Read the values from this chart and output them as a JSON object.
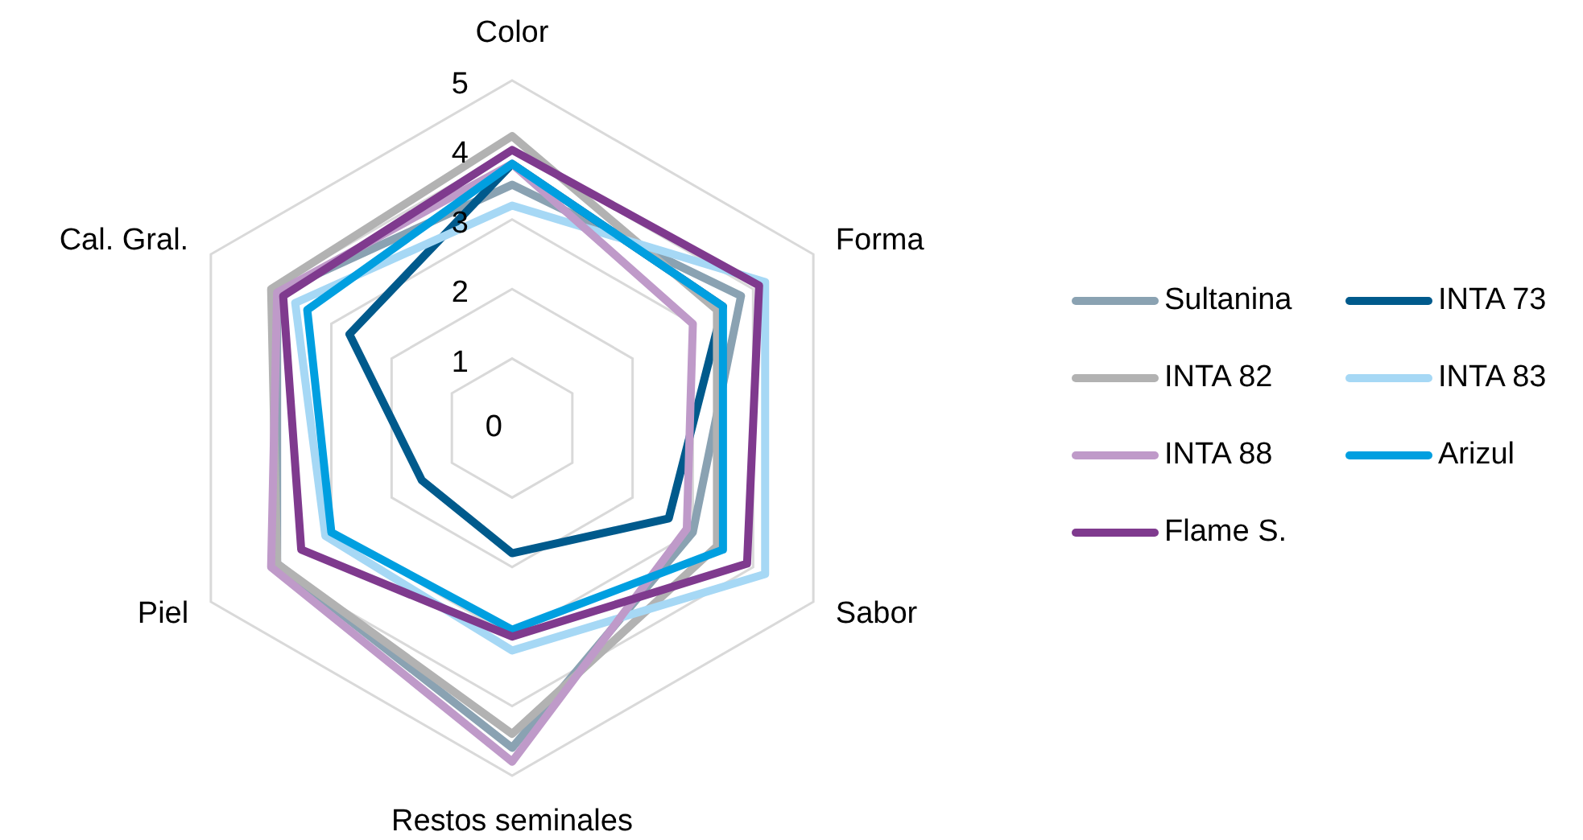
{
  "chart_data": {
    "type": "radar",
    "categories": [
      "Color",
      "Forma",
      "Sabor",
      "Restos seminales",
      "Piel",
      "Cal. Gral."
    ],
    "ylim": [
      0,
      5
    ],
    "yticks": [
      0,
      1,
      2,
      3,
      4,
      5
    ],
    "grid": true,
    "legend": "right",
    "series": [
      {
        "name": "Sultanina",
        "color": "#8aa2b2",
        "values": [
          3.5,
          3.8,
          3.0,
          4.6,
          3.9,
          3.9
        ]
      },
      {
        "name": "INTA 73",
        "color": "#005a8c",
        "values": [
          3.8,
          3.5,
          2.6,
          1.8,
          1.5,
          2.7
        ]
      },
      {
        "name": "INTA 82",
        "color": "#b2b2b2",
        "values": [
          4.2,
          3.4,
          3.4,
          4.4,
          3.9,
          4.0
        ]
      },
      {
        "name": "INTA 83",
        "color": "#a6d8f5",
        "values": [
          3.2,
          4.2,
          4.2,
          3.2,
          3.1,
          3.6
        ]
      },
      {
        "name": "INTA 88",
        "color": "#bf9ac9",
        "values": [
          3.8,
          3.0,
          2.9,
          4.8,
          4.0,
          3.9
        ]
      },
      {
        "name": "Arizul",
        "color": "#009fe0",
        "values": [
          3.8,
          3.5,
          3.5,
          2.9,
          3.0,
          3.4
        ]
      },
      {
        "name": "Flame S.",
        "color": "#7f3a8e",
        "values": [
          4.0,
          4.1,
          3.9,
          3.0,
          3.5,
          3.8
        ]
      }
    ]
  }
}
